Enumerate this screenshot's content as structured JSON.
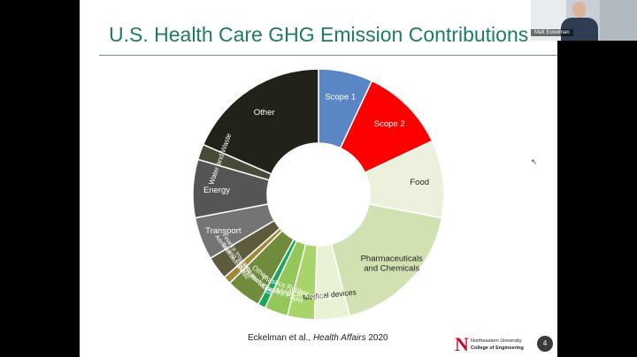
{
  "slide": {
    "title": "U.S. Health Care GHG Emission Contributions",
    "citation_author": "Eckelman et al.,",
    "citation_journal": "Health Affairs",
    "citation_year": "2020",
    "logo_letter": "N",
    "logo_line1": "Northeastern University",
    "logo_line2": "College of Engineering",
    "page_number": "4"
  },
  "video": {
    "participant_name": "Matt Eckelman"
  },
  "chart_data": {
    "type": "pie",
    "donut": true,
    "title": "U.S. Health Care GHG Emission Contributions",
    "slices": [
      {
        "label": "Scope 1",
        "value": 7.0,
        "color": "#5b86c5",
        "text_color": "#ffffff"
      },
      {
        "label": "Scope 2",
        "value": 11.0,
        "color": "#ff0000",
        "text_color": "#ffffff"
      },
      {
        "label": "Food",
        "value": 10.0,
        "color": "#edf0dc",
        "text_color": "#222222"
      },
      {
        "label": "Pharmaceuticals and Chemicals",
        "value": 18.0,
        "color": "#d2e1b2",
        "text_color": "#222222"
      },
      {
        "label": "Medical devices",
        "value": 4.5,
        "color": "#eaf2d6",
        "text_color": "#222222"
      },
      {
        "label": "Medical supplies",
        "value": 3.5,
        "color": "#a9d46c",
        "text_color": "#ffffff"
      },
      {
        "label": "Plastics Rubber Textiles Paper",
        "value": 3.0,
        "color": "#93c75a",
        "text_color": "#ffffff"
      },
      {
        "label": "ICT",
        "value": 1.0,
        "color": "#18a85a",
        "text_color": "#ffffff"
      },
      {
        "label": "Other Manufacturing",
        "value": 4.5,
        "color": "#6e8c3c",
        "text_color": "#ffffff"
      },
      {
        "label": "Testing and Research",
        "value": 1.0,
        "color": "#a0883a",
        "text_color": "#ffffff"
      },
      {
        "label": "Finance Insurance Administration Public",
        "value": 3.0,
        "color": "#5e5a3c",
        "text_color": "#ffffff"
      },
      {
        "label": "Transport",
        "value": 5.5,
        "color": "#747474",
        "text_color": "#ffffff"
      },
      {
        "label": "Energy",
        "value": 7.5,
        "color": "#555555",
        "text_color": "#ffffff"
      },
      {
        "label": "Water and Waste",
        "value": 2.0,
        "color": "#4a4a38",
        "text_color": "#ffffff"
      },
      {
        "label": "Other",
        "value": 18.5,
        "color": "#23221a",
        "text_color": "#ffffff"
      }
    ]
  }
}
